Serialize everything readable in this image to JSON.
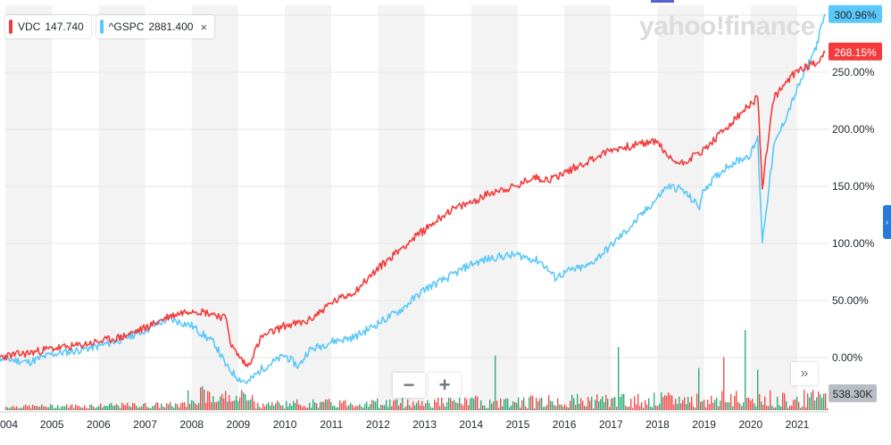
{
  "legend": {
    "vdc": {
      "symbol": "VDC",
      "value": "147.740",
      "color": "#f23b3b"
    },
    "gspc": {
      "symbol": "^GSPC",
      "value": "2881.400",
      "color": "#5ac8fa",
      "close": "×"
    }
  },
  "logo": "yahoo!finance",
  "zoom": {
    "minus": "−",
    "plus": "+"
  },
  "expand": "»",
  "side_tab": "›",
  "volume_label": "538.30K",
  "chart_data": {
    "type": "line",
    "x_ticks": [
      "004",
      "2005",
      "2006",
      "2007",
      "2008",
      "2009",
      "2010",
      "2011",
      "2012",
      "2013",
      "2014",
      "2015",
      "2016",
      "2017",
      "2018",
      "2019",
      "2020",
      "2021"
    ],
    "y_ticks": [
      "0.00%",
      "50.00%",
      "100.00%",
      "150.00%",
      "200.00%",
      "250.00%"
    ],
    "ylim": [
      -28,
      312
    ],
    "grid": true,
    "end_labels": {
      "gspc": "300.96%",
      "vdc": "268.15%"
    },
    "series": [
      {
        "name": "VDC",
        "color": "#f23b3b",
        "x": [
          2003.75,
          2004.5,
          2005.0,
          2005.5,
          2006.0,
          2006.5,
          2007.0,
          2007.5,
          2008.0,
          2008.5,
          2008.75,
          2008.85,
          2009.0,
          2009.2,
          2009.5,
          2010.0,
          2010.3,
          2010.5,
          2011.0,
          2011.5,
          2012.0,
          2012.5,
          2013.0,
          2013.5,
          2014.0,
          2014.5,
          2015.0,
          2015.3,
          2015.7,
          2016.0,
          2016.5,
          2017.0,
          2017.5,
          2018.0,
          2018.2,
          2018.5,
          2019.0,
          2019.5,
          2020.0,
          2020.15,
          2020.25,
          2020.5,
          2021.0,
          2021.4,
          2021.6
        ],
        "values": [
          0,
          4,
          8,
          10,
          14,
          18,
          26,
          36,
          42,
          38,
          34,
          10,
          2,
          -8,
          18,
          28,
          30,
          32,
          48,
          58,
          78,
          96,
          112,
          128,
          136,
          146,
          150,
          158,
          156,
          162,
          172,
          182,
          186,
          190,
          176,
          170,
          182,
          202,
          222,
          228,
          150,
          228,
          252,
          258,
          268
        ]
      },
      {
        "name": "^GSPC",
        "color": "#5ac8fa",
        "x": [
          2003.75,
          2004.5,
          2005.0,
          2005.5,
          2006.0,
          2006.5,
          2007.0,
          2007.5,
          2008.0,
          2008.5,
          2008.75,
          2009.0,
          2009.2,
          2009.5,
          2010.0,
          2010.3,
          2010.5,
          2011.0,
          2011.5,
          2012.0,
          2012.5,
          2013.0,
          2013.5,
          2014.0,
          2014.5,
          2015.0,
          2015.5,
          2015.8,
          2016.1,
          2016.5,
          2017.0,
          2017.5,
          2018.0,
          2018.2,
          2018.5,
          2018.9,
          2019.0,
          2019.5,
          2020.0,
          2020.15,
          2020.25,
          2020.5,
          2021.0,
          2021.4,
          2021.6
        ],
        "values": [
          0,
          -4,
          3,
          6,
          10,
          16,
          24,
          34,
          28,
          12,
          -8,
          -18,
          -22,
          -10,
          2,
          -8,
          6,
          14,
          18,
          30,
          42,
          60,
          70,
          82,
          88,
          90,
          84,
          70,
          76,
          80,
          98,
          118,
          140,
          150,
          148,
          132,
          148,
          168,
          178,
          192,
          102,
          185,
          235,
          272,
          301
        ]
      }
    ]
  }
}
